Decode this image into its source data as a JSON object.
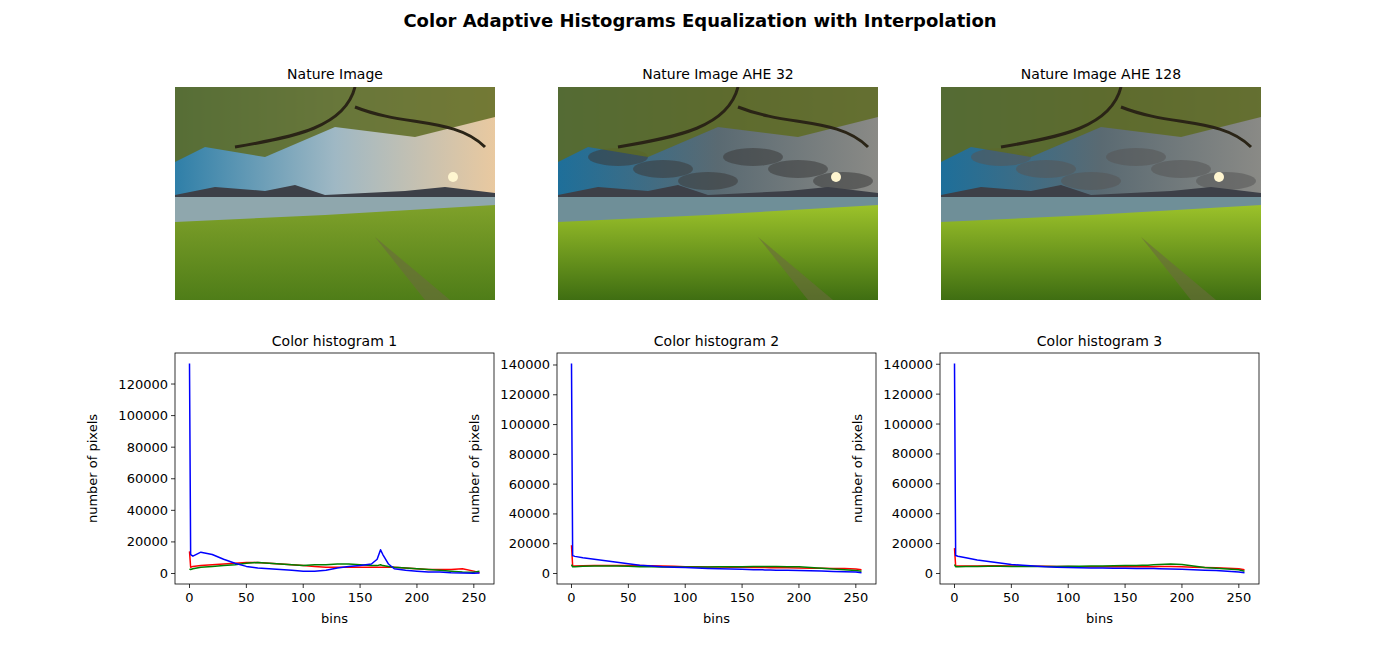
{
  "title": "Color Adaptive Histograms Equalization with Interpolation",
  "images": [
    {
      "title": "Nature Image"
    },
    {
      "title": "Nature Image AHE 32"
    },
    {
      "title": "Nature Image AHE 128"
    }
  ],
  "chart_data": [
    {
      "type": "line",
      "title": "Color histogram 1",
      "x_label": "bins",
      "y_label": "number of pixels",
      "x": [
        0,
        1,
        3,
        10,
        20,
        30,
        40,
        50,
        60,
        70,
        80,
        90,
        100,
        110,
        120,
        130,
        140,
        150,
        160,
        165,
        168,
        170,
        175,
        180,
        190,
        200,
        210,
        220,
        230,
        240,
        250,
        255
      ],
      "xlim": [
        -12.75,
        267.75
      ],
      "xticks": [
        0,
        50,
        100,
        150,
        200,
        250
      ],
      "ylim": [
        -6650,
        139650
      ],
      "yticks": [
        0,
        20000,
        40000,
        60000,
        80000,
        100000,
        120000
      ],
      "series": [
        {
          "color": "#ff0000",
          "values": [
            14000,
            4000,
            4500,
            5000,
            5500,
            6000,
            6500,
            7000,
            7000,
            6500,
            6000,
            5500,
            5000,
            4500,
            4000,
            4000,
            4000,
            4000,
            4000,
            4000,
            4000,
            4000,
            4000,
            4000,
            3500,
            3000,
            2500,
            2500,
            2500,
            3000,
            1500,
            500
          ]
        },
        {
          "color": "#008000",
          "values": [
            3000,
            2500,
            3000,
            4000,
            4500,
            5000,
            5500,
            6500,
            7000,
            6500,
            6000,
            5500,
            5000,
            5500,
            5500,
            6000,
            6000,
            5500,
            5000,
            5000,
            5500,
            5000,
            4500,
            4000,
            3500,
            3000,
            2500,
            2000,
            1500,
            1000,
            800,
            1500
          ]
        },
        {
          "color": "#0000ff",
          "values": [
            133000,
            12000,
            11000,
            13500,
            12000,
            9000,
            6500,
            4500,
            3500,
            3000,
            2500,
            2000,
            1500,
            1500,
            2000,
            3500,
            4500,
            5000,
            6000,
            9000,
            15000,
            12000,
            6000,
            3000,
            2000,
            1500,
            1000,
            1000,
            500,
            300,
            200,
            300
          ]
        }
      ]
    },
    {
      "type": "line",
      "title": "Color histogram 2",
      "x_label": "bins",
      "y_label": "number of pixels",
      "x": [
        0,
        1,
        3,
        10,
        20,
        30,
        40,
        50,
        60,
        70,
        80,
        90,
        100,
        110,
        120,
        130,
        140,
        150,
        160,
        165,
        168,
        170,
        175,
        180,
        190,
        200,
        210,
        220,
        230,
        240,
        250,
        255
      ],
      "xlim": [
        -12.75,
        267.75
      ],
      "xticks": [
        0,
        50,
        100,
        150,
        200,
        250
      ],
      "ylim": [
        -7050,
        148050
      ],
      "yticks": [
        0,
        20000,
        40000,
        60000,
        80000,
        100000,
        120000,
        140000
      ],
      "series": [
        {
          "color": "#ff0000",
          "values": [
            19000,
            5000,
            5000,
            5200,
            5300,
            5400,
            5400,
            5400,
            5300,
            5200,
            5000,
            4800,
            4600,
            4500,
            4400,
            4300,
            4200,
            4200,
            4100,
            4000,
            4000,
            4000,
            3900,
            3900,
            3800,
            3700,
            3600,
            3500,
            3400,
            3300,
            3000,
            2500
          ]
        },
        {
          "color": "#008000",
          "values": [
            6000,
            4500,
            4500,
            4800,
            5000,
            5000,
            5000,
            4800,
            4600,
            4500,
            4400,
            4300,
            4300,
            4300,
            4400,
            4500,
            4500,
            4600,
            4700,
            4700,
            4700,
            4700,
            4700,
            4700,
            4600,
            4500,
            4000,
            3500,
            3000,
            2500,
            2000,
            1500
          ]
        },
        {
          "color": "#0000ff",
          "values": [
            141000,
            12000,
            11500,
            10500,
            9500,
            8500,
            7500,
            6500,
            5500,
            5000,
            4500,
            4200,
            4000,
            3700,
            3400,
            3200,
            3000,
            2800,
            2600,
            2500,
            2500,
            2400,
            2300,
            2200,
            2100,
            2000,
            1800,
            1600,
            1400,
            1200,
            1000,
            500
          ]
        }
      ]
    },
    {
      "type": "line",
      "title": "Color histogram 3",
      "x_label": "bins",
      "y_label": "number of pixels",
      "x": [
        0,
        1,
        3,
        10,
        20,
        30,
        40,
        50,
        60,
        70,
        80,
        90,
        100,
        110,
        120,
        130,
        140,
        150,
        160,
        165,
        168,
        170,
        175,
        180,
        190,
        200,
        210,
        220,
        230,
        240,
        250,
        255
      ],
      "xlim": [
        -12.75,
        267.75
      ],
      "xticks": [
        0,
        50,
        100,
        150,
        200,
        250
      ],
      "ylim": [
        -7025,
        147525
      ],
      "yticks": [
        0,
        20000,
        40000,
        60000,
        80000,
        100000,
        120000,
        140000
      ],
      "series": [
        {
          "color": "#ff0000",
          "values": [
            17000,
            5000,
            5000,
            5000,
            5100,
            5200,
            5200,
            5100,
            5000,
            4900,
            4800,
            4700,
            4600,
            4500,
            4500,
            4500,
            4500,
            4500,
            4500,
            4500,
            4500,
            4500,
            4500,
            4600,
            4600,
            4500,
            4200,
            4000,
            3800,
            3500,
            3200,
            2500
          ]
        },
        {
          "color": "#008000",
          "values": [
            6000,
            4500,
            4500,
            4600,
            4700,
            4800,
            4800,
            4700,
            4600,
            4600,
            4600,
            4700,
            4800,
            4900,
            5000,
            5100,
            5200,
            5300,
            5400,
            5500,
            5600,
            5600,
            5800,
            6000,
            6300,
            6000,
            5000,
            4000,
            3500,
            3000,
            2500,
            1500
          ]
        },
        {
          "color": "#0000ff",
          "values": [
            140500,
            12000,
            11500,
            10500,
            9000,
            8000,
            7000,
            6000,
            5500,
            5000,
            4500,
            4200,
            4000,
            3800,
            3700,
            3600,
            3500,
            3500,
            3400,
            3400,
            3400,
            3400,
            3300,
            3200,
            3000,
            2800,
            2500,
            2200,
            2000,
            1500,
            1000,
            500
          ]
        }
      ]
    }
  ]
}
